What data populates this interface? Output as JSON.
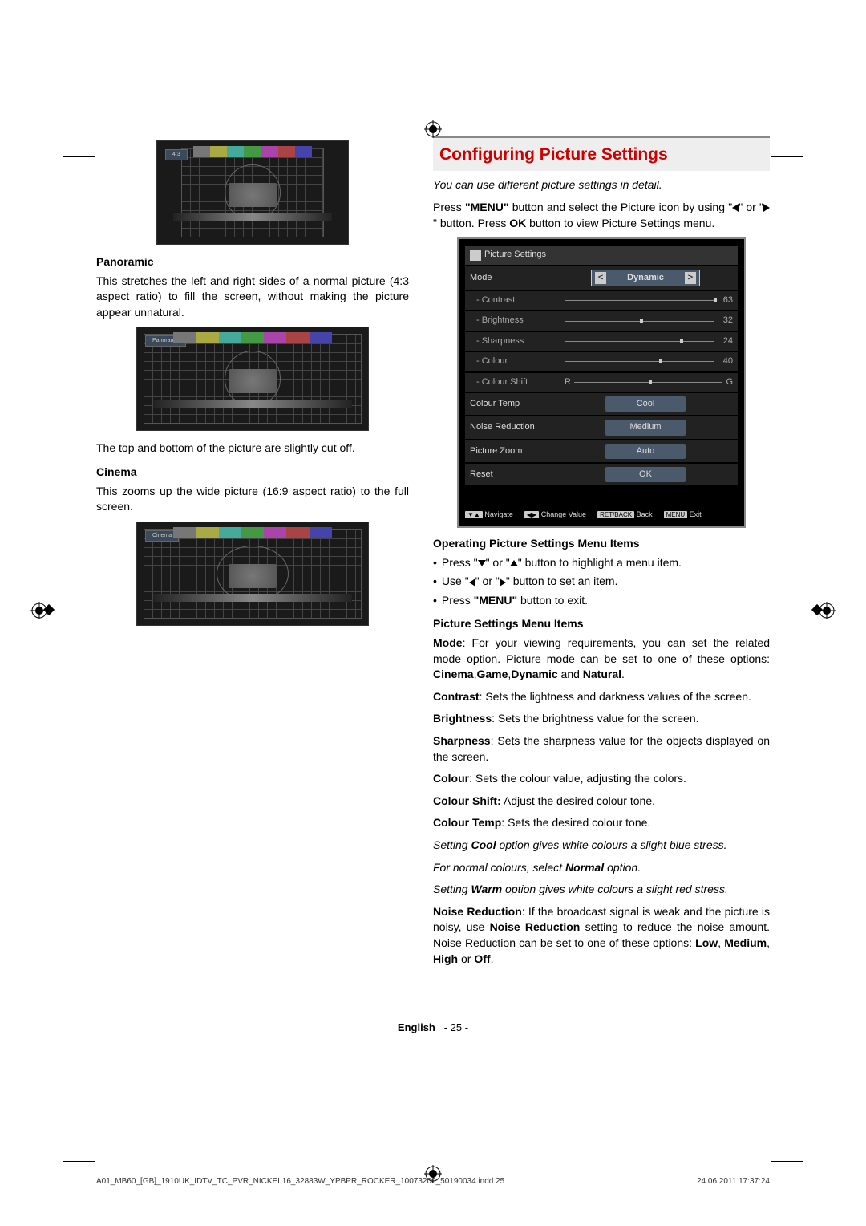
{
  "crop_marks": true,
  "aspect_images": {
    "first_label": "4:3",
    "panoramic_label": "Panoramic",
    "cinema_label": "Cinema"
  },
  "left": {
    "panoramic_heading": "Panoramic",
    "panoramic_body": "This stretches the left and right sides of a normal picture (4:3 aspect ratio) to fill the screen, without making the picture appear unnatural.",
    "panoramic_note": "The top and bottom of the picture are slightly cut off.",
    "cinema_heading": "Cinema",
    "cinema_body": "This zooms up the wide picture (16:9 aspect ratio) to the full screen."
  },
  "right": {
    "title": "Configuring Picture Settings",
    "intro_italic": "You can use different picture settings in detail.",
    "intro_body_1": "Press ",
    "intro_body_menu": "\"MENU\"",
    "intro_body_2": " button and select the Picture icon by using \"",
    "intro_body_3": "\" or \"",
    "intro_body_4": "\" button. Press ",
    "intro_body_ok": "OK",
    "intro_body_5": " button to view Picture Settings menu.",
    "menu": {
      "title": "Picture Settings",
      "rows": [
        {
          "label": "Mode",
          "type": "select",
          "value": "Dynamic",
          "indent": 0
        },
        {
          "label": "- Contrast",
          "type": "slider",
          "value": 63,
          "max": 63,
          "indent": 1
        },
        {
          "label": "- Brightness",
          "type": "slider",
          "value": 32,
          "max": 63,
          "indent": 1
        },
        {
          "label": "- Sharpness",
          "type": "slider",
          "value": 24,
          "max": 31,
          "indent": 1
        },
        {
          "label": "- Colour",
          "type": "slider",
          "value": 40,
          "max": 63,
          "indent": 1
        },
        {
          "label": "- Colour Shift",
          "type": "rgslider",
          "value": 0,
          "leftLabel": "R",
          "rightLabel": "G",
          "indent": 1
        },
        {
          "label": "Colour Temp",
          "type": "pill",
          "value": "Cool",
          "indent": 0
        },
        {
          "label": "Noise Reduction",
          "type": "pill",
          "value": "Medium",
          "indent": 0
        },
        {
          "label": "Picture Zoom",
          "type": "pill",
          "value": "Auto",
          "indent": 0
        },
        {
          "label": "Reset",
          "type": "pill",
          "value": "OK",
          "indent": 0
        }
      ],
      "footer": [
        {
          "key": "▼▲",
          "label": "Navigate"
        },
        {
          "key": "◀▶",
          "label": "Change Value"
        },
        {
          "key": "RET/BACK",
          "label": "Back"
        },
        {
          "key": "MENU",
          "label": "Exit"
        }
      ]
    },
    "op_heading": "Operating Picture Settings Menu Items",
    "op_bullets": [
      {
        "pre": "Press \"",
        "arrows": [
          "down",
          "up"
        ],
        "mid": "\" or \"",
        "post": "\" button to highlight a menu item."
      },
      {
        "pre": "Use \"",
        "arrows": [
          "left",
          "right"
        ],
        "mid": "\" or \"",
        "post": "\" button to set an item."
      },
      {
        "pre": "Press ",
        "bold": "\"MENU\"",
        "post": " button to exit."
      }
    ],
    "items_heading": "Picture Settings Menu Items",
    "items": [
      {
        "label": "Mode",
        "body": ": For your viewing requirements, you can set the related mode option. Picture mode can be set to one of these options: ",
        "bold_tail": "Cinema",
        "tail": ",",
        "bold_tail2": "Game",
        "tail2": ",",
        "bold_tail3": "Dynamic",
        "tail3": " and ",
        "bold_tail4": "Natural",
        "tail4": "."
      },
      {
        "label": "Contrast",
        "body": ": Sets the lightness and darkness values of the screen."
      },
      {
        "label": "Brightness",
        "body": ": Sets the brightness value for the screen."
      },
      {
        "label": "Sharpness",
        "body": ": Sets the sharpness value for the objects displayed on the screen."
      },
      {
        "label": "Colour",
        "body": ": Sets the colour value, adjusting the colors."
      },
      {
        "label": "Colour Shift:",
        "body": " Adjust the desired colour tone."
      },
      {
        "label": "Colour Temp",
        "body": ": Sets the desired colour tone."
      }
    ],
    "italic_notes": [
      {
        "pre": "Setting ",
        "bold": "Cool",
        "post": " option gives white colours a slight blue stress."
      },
      {
        "pre": "For normal colours, select ",
        "bold": "Normal",
        "post": " option."
      },
      {
        "pre": "Setting ",
        "bold": "Warm",
        "post": " option gives white colours a slight red stress."
      }
    ],
    "noise": {
      "label": "Noise Reduction",
      "body": ": If the broadcast signal is weak and the picture is noisy, use ",
      "bold": "Noise Reduction",
      "body2": " setting to reduce the noise amount. Noise Reduction can be set to one of these options: ",
      "opts": [
        "Low",
        "Medium",
        "High",
        "Off"
      ]
    }
  },
  "page_footer": {
    "lang": "English",
    "page": "- 25 -"
  },
  "foot_file": "A01_MB60_[GB]_1910UK_IDTV_TC_PVR_NICKEL16_32883W_YPBPR_ROCKER_10073200_50190034.indd   25",
  "foot_date": "24.06.2011   17:37:24"
}
